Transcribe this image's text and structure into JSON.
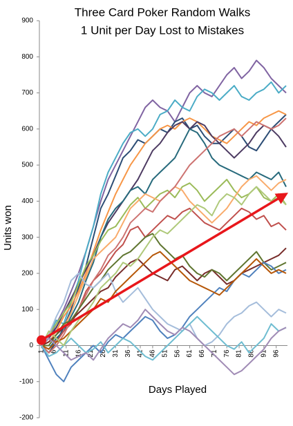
{
  "chart_data": {
    "type": "line",
    "title": [
      "Three Card Poker Random Walks",
      "1 Unit per Day Lost to Mistakes"
    ],
    "x_label": "Days Played",
    "y_label": "Units won",
    "x": [
      1,
      4,
      7,
      10,
      13,
      16,
      19,
      22,
      25,
      28,
      31,
      34,
      37,
      40,
      43,
      46,
      49,
      52,
      55,
      58,
      61,
      64,
      67,
      70,
      73,
      76,
      79,
      82,
      85,
      88,
      91,
      94,
      97,
      100
    ],
    "xlim": [
      1,
      100
    ],
    "xticks": [
      1,
      6,
      11,
      16,
      21,
      26,
      31,
      36,
      41,
      46,
      51,
      56,
      61,
      66,
      71,
      76,
      81,
      86,
      91,
      96
    ],
    "ylim": [
      -200,
      900
    ],
    "yticks": [
      -200,
      -100,
      0,
      100,
      200,
      300,
      400,
      500,
      600,
      700,
      800,
      900
    ],
    "series": [
      {
        "color": "#8064a2",
        "values": [
          0,
          20,
          60,
          100,
          150,
          200,
          260,
          330,
          400,
          460,
          500,
          540,
          580,
          620,
          660,
          680,
          660,
          650,
          620,
          660,
          700,
          720,
          700,
          690,
          720,
          750,
          770,
          740,
          760,
          790,
          770,
          740,
          720,
          700
        ]
      },
      {
        "color": "#4bacc6",
        "values": [
          0,
          30,
          70,
          60,
          120,
          180,
          260,
          330,
          420,
          480,
          520,
          560,
          590,
          600,
          580,
          600,
          640,
          650,
          680,
          660,
          650,
          690,
          710,
          700,
          680,
          700,
          720,
          690,
          680,
          700,
          710,
          730,
          700,
          720
        ]
      },
      {
        "color": "#2c4d75",
        "values": [
          0,
          -20,
          10,
          50,
          100,
          160,
          220,
          300,
          380,
          420,
          470,
          520,
          540,
          570,
          560,
          580,
          600,
          590,
          620,
          630,
          600,
          610,
          580,
          560,
          560,
          580,
          600,
          580,
          550,
          540,
          570,
          600,
          620,
          640
        ]
      },
      {
        "color": "#f79646",
        "values": [
          0,
          10,
          40,
          80,
          110,
          150,
          200,
          260,
          320,
          370,
          420,
          460,
          500,
          530,
          560,
          580,
          600,
          610,
          600,
          620,
          630,
          620,
          600,
          580,
          570,
          560,
          580,
          600,
          620,
          610,
          630,
          640,
          650,
          640
        ]
      },
      {
        "color": "#4d3b62",
        "values": [
          0,
          20,
          50,
          90,
          130,
          170,
          210,
          250,
          300,
          340,
          370,
          400,
          430,
          460,
          500,
          540,
          560,
          590,
          610,
          620,
          600,
          620,
          610,
          580,
          560,
          540,
          520,
          540,
          560,
          590,
          610,
          600,
          580,
          550
        ]
      },
      {
        "color": "#276a7c",
        "values": [
          0,
          -10,
          20,
          40,
          80,
          120,
          180,
          230,
          300,
          350,
          380,
          400,
          430,
          440,
          420,
          460,
          480,
          500,
          520,
          560,
          600,
          590,
          560,
          520,
          500,
          490,
          480,
          470,
          460,
          480,
          470,
          460,
          480,
          440
        ]
      },
      {
        "color": "#9bbb59",
        "values": [
          0,
          30,
          60,
          90,
          120,
          170,
          220,
          250,
          290,
          320,
          330,
          360,
          390,
          410,
          380,
          400,
          420,
          430,
          410,
          440,
          450,
          430,
          400,
          420,
          440,
          460,
          430,
          410,
          420,
          440,
          410,
          400,
          420,
          390
        ]
      },
      {
        "color": "#f9ab6b",
        "values": [
          0,
          10,
          40,
          50,
          90,
          140,
          190,
          240,
          260,
          280,
          300,
          340,
          380,
          400,
          420,
          410,
          400,
          420,
          440,
          430,
          400,
          380,
          360,
          340,
          360,
          380,
          410,
          440,
          460,
          470,
          450,
          430,
          450,
          460
        ]
      },
      {
        "color": "#c0504d",
        "values": [
          0,
          20,
          10,
          40,
          60,
          100,
          150,
          180,
          200,
          230,
          260,
          280,
          320,
          330,
          300,
          320,
          340,
          360,
          350,
          370,
          380,
          360,
          340,
          330,
          320,
          340,
          360,
          380,
          370,
          350,
          360,
          330,
          340,
          320
        ]
      },
      {
        "color": "#cd7371",
        "values": [
          0,
          -20,
          0,
          30,
          70,
          100,
          140,
          180,
          210,
          250,
          270,
          300,
          340,
          360,
          380,
          370,
          400,
          420,
          440,
          470,
          500,
          520,
          540,
          560,
          580,
          590,
          600,
          580,
          600,
          620,
          610,
          600,
          610,
          630
        ]
      },
      {
        "color": "#772c2a",
        "values": [
          0,
          10,
          30,
          50,
          70,
          90,
          110,
          130,
          150,
          160,
          190,
          210,
          230,
          240,
          220,
          200,
          190,
          180,
          210,
          220,
          200,
          180,
          200,
          210,
          190,
          170,
          180,
          200,
          210,
          220,
          230,
          240,
          250,
          270
        ]
      },
      {
        "color": "#5f7530",
        "values": [
          0,
          0,
          30,
          60,
          70,
          100,
          130,
          160,
          180,
          210,
          230,
          250,
          260,
          280,
          300,
          310,
          280,
          260,
          240,
          250,
          220,
          200,
          190,
          210,
          200,
          180,
          200,
          220,
          240,
          260,
          230,
          210,
          220,
          230
        ]
      },
      {
        "color": "#4f81bd",
        "values": [
          0,
          -40,
          -80,
          -100,
          -60,
          -40,
          -20,
          0,
          -20,
          10,
          30,
          20,
          40,
          60,
          80,
          70,
          40,
          20,
          30,
          50,
          80,
          100,
          120,
          140,
          160,
          150,
          180,
          200,
          190,
          210,
          230,
          220,
          200,
          210
        ]
      },
      {
        "color": "#a5bddb",
        "values": [
          0,
          30,
          80,
          120,
          180,
          200,
          170,
          160,
          180,
          200,
          150,
          120,
          140,
          160,
          130,
          100,
          80,
          60,
          50,
          40,
          60,
          20,
          0,
          10,
          30,
          60,
          80,
          90,
          110,
          120,
          100,
          80,
          100,
          90
        ]
      },
      {
        "color": "#b65708",
        "values": [
          0,
          -10,
          10,
          20,
          40,
          60,
          80,
          100,
          130,
          120,
          150,
          170,
          190,
          210,
          230,
          250,
          260,
          240,
          220,
          200,
          180,
          170,
          160,
          150,
          140,
          160,
          180,
          200,
          220,
          240,
          220,
          200,
          210,
          200
        ]
      },
      {
        "color": "#6fbdd1",
        "values": [
          0,
          -30,
          -20,
          0,
          20,
          0,
          -20,
          -10,
          10,
          -20,
          0,
          20,
          10,
          -10,
          -30,
          -40,
          -20,
          0,
          20,
          40,
          60,
          80,
          60,
          40,
          20,
          0,
          -10,
          10,
          -20,
          0,
          20,
          60,
          40,
          50
        ]
      },
      {
        "color": "#afc97a",
        "values": [
          0,
          40,
          20,
          0,
          40,
          70,
          90,
          120,
          160,
          180,
          200,
          230,
          220,
          240,
          270,
          300,
          320,
          310,
          330,
          350,
          370,
          390,
          380,
          360,
          400,
          420,
          410,
          390,
          420,
          440,
          420,
          400,
          410,
          390
        ]
      },
      {
        "color": "#a08bb5",
        "values": [
          0,
          20,
          0,
          -20,
          -40,
          -30,
          -20,
          -40,
          -10,
          20,
          40,
          60,
          50,
          70,
          100,
          80,
          60,
          40,
          30,
          50,
          40,
          20,
          0,
          -20,
          -40,
          -60,
          -80,
          -70,
          -50,
          -30,
          -10,
          20,
          40,
          50
        ]
      }
    ],
    "trend": {
      "x": [
        1,
        100
      ],
      "values": [
        15,
        420
      ],
      "color": "#e8161b"
    }
  }
}
